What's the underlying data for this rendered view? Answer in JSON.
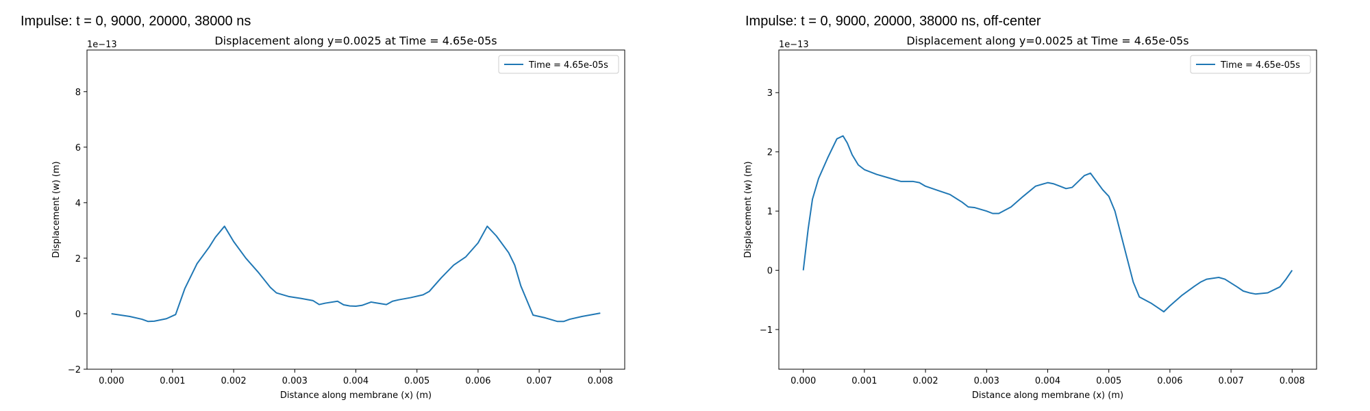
{
  "chart_data": [
    {
      "type": "line",
      "suptitle": "Impulse: t = 0, 9000, 20000, 38000 ns",
      "title": "Displacement along y=0.0025 at Time = 4.65e-05s",
      "xlabel": "Distance along membrane (x) (m)",
      "ylabel": "Displacement (w) (m)",
      "offset_text": "1e−13",
      "xlim": [
        -0.0004,
        0.0084
      ],
      "ylim": [
        -2.0,
        9.5
      ],
      "xticks": [
        0.0,
        0.001,
        0.002,
        0.003,
        0.004,
        0.005,
        0.006,
        0.007,
        0.008
      ],
      "xtick_labels": [
        "0.000",
        "0.001",
        "0.002",
        "0.003",
        "0.004",
        "0.005",
        "0.006",
        "0.007",
        "0.008"
      ],
      "yticks": [
        -2,
        0,
        2,
        4,
        6,
        8
      ],
      "ytick_labels": [
        "−2",
        "0",
        "2",
        "4",
        "6",
        "8"
      ],
      "legend": "top-right",
      "grid": false,
      "series": [
        {
          "name": "Time = 4.65e-05s",
          "color": "#1f77b4",
          "x": [
            0.0,
            0.0003,
            0.0005,
            0.0006,
            0.0007,
            0.0009,
            0.001,
            0.00105,
            0.0012,
            0.0014,
            0.0016,
            0.0017,
            0.00185,
            0.002,
            0.0022,
            0.0024,
            0.0026,
            0.0027,
            0.0029,
            0.0031,
            0.0033,
            0.0034,
            0.0035,
            0.0037,
            0.0038,
            0.0039,
            0.004,
            0.0041,
            0.0042,
            0.00425,
            0.0043,
            0.0045,
            0.0046,
            0.0047,
            0.0049,
            0.0051,
            0.0052,
            0.0054,
            0.0056,
            0.0058,
            0.006,
            0.00615,
            0.0063,
            0.0065,
            0.0066,
            0.0067,
            0.0069,
            0.0071,
            0.0073,
            0.0074,
            0.0075,
            0.0077,
            0.0079,
            0.008
          ],
          "values": [
            0.0,
            -0.1,
            -0.2,
            -0.28,
            -0.27,
            -0.18,
            -0.08,
            -0.03,
            0.9,
            1.8,
            2.4,
            2.75,
            3.15,
            2.6,
            2.0,
            1.5,
            0.95,
            0.75,
            0.62,
            0.55,
            0.47,
            0.33,
            0.38,
            0.45,
            0.32,
            0.28,
            0.27,
            0.3,
            0.38,
            0.42,
            0.4,
            0.33,
            0.45,
            0.5,
            0.58,
            0.68,
            0.8,
            1.3,
            1.75,
            2.05,
            2.55,
            3.15,
            2.8,
            2.2,
            1.75,
            1.0,
            -0.05,
            -0.15,
            -0.28,
            -0.28,
            -0.2,
            -0.1,
            -0.02,
            0.02
          ]
        }
      ]
    },
    {
      "type": "line",
      "suptitle": "Impulse: t = 0, 9000, 20000, 38000 ns, off-center",
      "title": "Displacement along y=0.0025 at Time = 4.65e-05s",
      "xlabel": "Distance along membrane (x) (m)",
      "ylabel": "Displacement (w) (m)",
      "offset_text": "1e−13",
      "xlim": [
        -0.0004,
        0.0084
      ],
      "ylim": [
        -1.67,
        3.72
      ],
      "xticks": [
        0.0,
        0.001,
        0.002,
        0.003,
        0.004,
        0.005,
        0.006,
        0.007,
        0.008
      ],
      "xtick_labels": [
        "0.000",
        "0.001",
        "0.002",
        "0.003",
        "0.004",
        "0.005",
        "0.006",
        "0.007",
        "0.008"
      ],
      "yticks": [
        -1,
        0,
        1,
        2,
        3
      ],
      "ytick_labels": [
        "−1",
        "0",
        "1",
        "2",
        "3"
      ],
      "legend": "top-right",
      "grid": false,
      "series": [
        {
          "name": "Time = 4.65e-05s",
          "color": "#1f77b4",
          "x": [
            0.0,
            8e-05,
            0.00015,
            0.00025,
            0.0004,
            0.00055,
            0.00065,
            0.00072,
            0.0008,
            0.0009,
            0.001,
            0.0012,
            0.0014,
            0.0016,
            0.0018,
            0.0019,
            0.002,
            0.0022,
            0.0024,
            0.0026,
            0.0027,
            0.0028,
            0.003,
            0.0031,
            0.0032,
            0.0034,
            0.0036,
            0.0038,
            0.004,
            0.0041,
            0.0042,
            0.0043,
            0.0044,
            0.0046,
            0.0047,
            0.0049,
            0.005,
            0.0051,
            0.0052,
            0.0053,
            0.0054,
            0.0055,
            0.0057,
            0.0058,
            0.0059,
            0.006,
            0.0062,
            0.0064,
            0.0065,
            0.0066,
            0.0068,
            0.0069,
            0.0071,
            0.0072,
            0.0073,
            0.0074,
            0.0076,
            0.0078,
            0.0079,
            0.008
          ],
          "values": [
            0.0,
            0.7,
            1.2,
            1.55,
            1.9,
            2.22,
            2.27,
            2.15,
            1.95,
            1.78,
            1.7,
            1.62,
            1.56,
            1.5,
            1.5,
            1.48,
            1.42,
            1.35,
            1.28,
            1.15,
            1.07,
            1.06,
            1.0,
            0.96,
            0.96,
            1.07,
            1.25,
            1.42,
            1.48,
            1.46,
            1.42,
            1.38,
            1.4,
            1.6,
            1.64,
            1.36,
            1.25,
            1.0,
            0.6,
            0.2,
            -0.2,
            -0.45,
            -0.56,
            -0.63,
            -0.7,
            -0.6,
            -0.42,
            -0.27,
            -0.2,
            -0.15,
            -0.12,
            -0.15,
            -0.28,
            -0.35,
            -0.38,
            -0.4,
            -0.38,
            -0.28,
            -0.15,
            0.0
          ]
        }
      ]
    }
  ]
}
